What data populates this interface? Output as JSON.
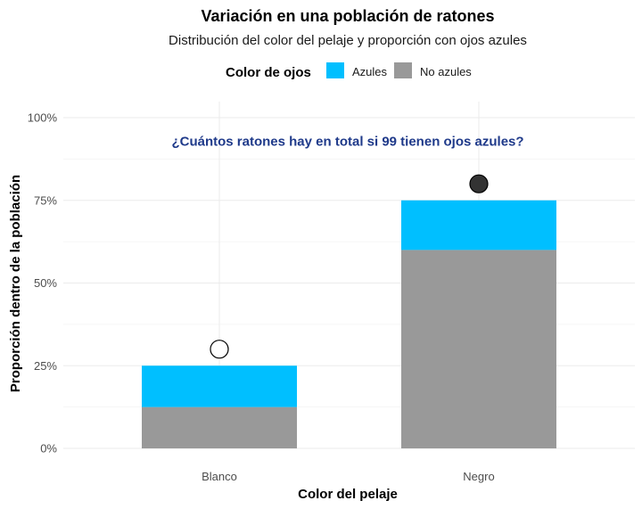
{
  "chart_data": {
    "type": "bar",
    "stacked": true,
    "title": "Variación en una población de ratones",
    "subtitle": "Distribución del color del pelaje y proporción con ojos azules",
    "xlabel": "Color del pelaje",
    "ylabel": "Proporción dentro de la población",
    "categories": [
      "Blanco",
      "Negro"
    ],
    "ylim": [
      0,
      1
    ],
    "yticks": [
      0,
      0.25,
      0.5,
      0.75,
      1.0
    ],
    "ytick_labels": [
      "0%",
      "25%",
      "50%",
      "75%",
      "100%"
    ],
    "series": [
      {
        "name": "No azules",
        "values": [
          0.125,
          0.6
        ],
        "color": "#999999"
      },
      {
        "name": "Azules",
        "values": [
          0.125,
          0.15
        ],
        "color": "#00BFFF"
      }
    ],
    "markers": [
      {
        "category": "Blanco",
        "y": 0.3,
        "fill": "#ffffff",
        "stroke": "#000000"
      },
      {
        "category": "Negro",
        "y": 0.8,
        "fill": "#333333",
        "stroke": "#000000"
      }
    ],
    "legend": {
      "title": "Color de ojos",
      "placement": "top",
      "entries": [
        "Azules",
        "No azules"
      ]
    },
    "annotation": {
      "text": "¿Cuántos ratones hay en total si 99 tienen ojos azules?",
      "color": "#1F3A8A",
      "y": 0.915
    },
    "grid": true
  }
}
